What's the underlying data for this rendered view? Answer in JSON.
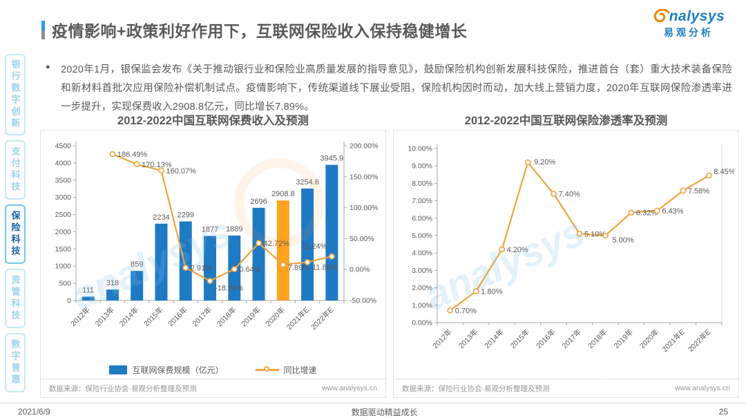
{
  "header": {
    "title": "疫情影响+政策利好作用下，互联网保险收入保持稳健增长"
  },
  "logo": {
    "brand_rest": "nalysys",
    "cn": "易观分析"
  },
  "bullet": {
    "marker": "●",
    "text": "2020年1月，银保监会发布《关于推动银行业和保险业高质量发展的指导意见》，鼓励保险机构创新发展科技保险，推进首台（套）重大技术装备保险和新材料首批次应用保险补偿机制试点。疫情影响下，传统渠道线下展业受阻，保险机构因时而动，加大线上营销力度，2020年互联网保险渗透率进一步提升，实现保费收入2908.8亿元，同比增长7.89%。"
  },
  "sidebar": {
    "items": [
      {
        "label": "银行数字创新",
        "active": false
      },
      {
        "label": "支付科技",
        "active": false
      },
      {
        "label": "保险科技",
        "active": true
      },
      {
        "label": "资管科技",
        "active": false
      },
      {
        "label": "数字普惠",
        "active": false
      }
    ]
  },
  "watermark": "analysys",
  "chart_data": [
    {
      "id": "premium",
      "type": "bar",
      "title": "2012-2022中国互联网保费收入及预测",
      "categories": [
        "2012年",
        "2013年",
        "2014年",
        "2015年",
        "2016年",
        "2017年",
        "2018年",
        "2019年",
        "2020年",
        "2021年E",
        "2022年E"
      ],
      "left_axis": {
        "min": 0,
        "max": 4500,
        "step": 500
      },
      "right_axis": {
        "min": -50,
        "max": 200,
        "step": 50,
        "format": "pct2"
      },
      "series": [
        {
          "name": "互联网保费规模（亿元）",
          "type": "bar",
          "axis": "left",
          "color": "#1f7ac4",
          "highlight_index": 8,
          "highlight_color": "#ffa321",
          "values": [
            111,
            318,
            859,
            2234,
            2299,
            1877,
            1889,
            2696,
            2908.8,
            3254.6,
            3945.9
          ],
          "labels": [
            "111",
            "318",
            "859",
            "2234",
            "2299",
            "1877",
            "1889",
            "2696",
            "2908.8",
            "3254.6",
            "3945.9"
          ]
        },
        {
          "name": "同比增速",
          "type": "line",
          "axis": "right",
          "color": "#f0a33c",
          "values": [
            null,
            186.49,
            170.13,
            160.07,
            2.91,
            -18.36,
            0.64,
            42.72,
            7.89,
            11.89,
            21.24
          ],
          "labels": [
            "",
            "186.49%",
            "170.13%",
            "160.07%",
            "2.91%",
            "-18.36%",
            "0.64%",
            "42.72%",
            "7.89%",
            "11.89%",
            "21.24%"
          ],
          "label_offsets": {
            "5": [
              7,
              14
            ],
            "8": [
              7,
              8
            ],
            "9": [
              7,
              11
            ],
            "10": [
              -7,
              -11,
              "end"
            ]
          }
        }
      ],
      "legend_position": "bottom",
      "source": "数据来源：保险行业协会·易观分析整理及预测",
      "site": "www.analysys.cn"
    },
    {
      "id": "penetration",
      "type": "line",
      "title": "2012-2022中国互联网保险渗透率及预测",
      "categories": [
        "2012年",
        "2013年",
        "2014年",
        "2015年",
        "2016年",
        "2017年",
        "2018年",
        "2019年",
        "2020年",
        "2021年E",
        "2022年E"
      ],
      "y_axis": {
        "min": 0,
        "max": 10,
        "step": 1,
        "format": "pct2"
      },
      "series": [
        {
          "type": "line",
          "axis": "left",
          "color": "#f0a33c",
          "values": [
            0.7,
            1.8,
            4.2,
            9.2,
            7.4,
            5.1,
            5.0,
            6.32,
            6.43,
            7.58,
            8.45
          ],
          "labels": [
            "0.70%",
            "1.80%",
            "4.20%",
            "9.20%",
            "7.40%",
            "5.10%",
            "5.00%",
            "6.32%",
            "6.43%",
            "7.58%",
            "8.45%"
          ],
          "label_offsets": {
            "3": [
              9,
              3
            ],
            "6": [
              10,
              10
            ],
            "10": [
              7,
              -2
            ]
          }
        }
      ],
      "source": "数据来源：保险行业协会·易观分析整理及预测",
      "site": "www.analysys.cn"
    }
  ],
  "footer": {
    "date": "2021/6/9",
    "slogan": "数据驱动精益成长",
    "page": "25"
  }
}
